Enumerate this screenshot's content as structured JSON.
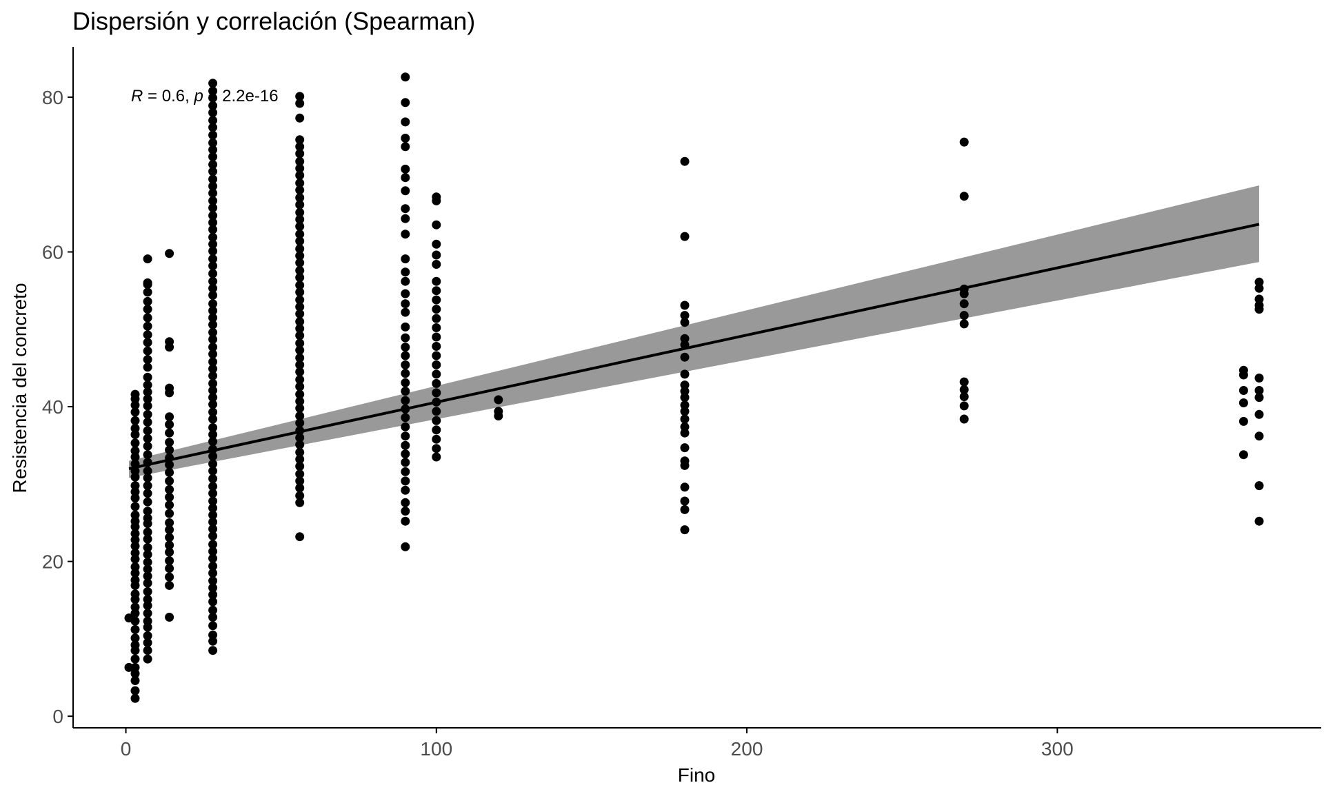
{
  "chart_data": {
    "type": "scatter",
    "title": "Dispersión y correlación (Spearman)",
    "xlabel": "Fino",
    "ylabel": "Resistencia del concreto",
    "xlim": [
      -17,
      385
    ],
    "ylim": [
      -1.5,
      86.5
    ],
    "xticks": [
      0,
      100,
      200,
      300
    ],
    "yticks": [
      0,
      20,
      40,
      60,
      80
    ],
    "grid": false,
    "legend": "none",
    "annotation": {
      "r_symbol": "R",
      "r_text": " = 0.6, ",
      "p_symbol": "p",
      "p_text": " < 2.2e-16",
      "x": 1,
      "y": 80
    },
    "regression": {
      "x_range": [
        1,
        365
      ],
      "intercept": 31.9,
      "slope": 0.0868,
      "ci_low_start": 30.8,
      "ci_low_end": 58.7,
      "ci_high_start": 33.0,
      "ci_high_end": 68.6
    },
    "points": [
      {
        "x": 1,
        "y": [
          6.3,
          12.7
        ]
      },
      {
        "x": 3,
        "y": [
          2.3,
          3.3,
          4.6,
          5.5,
          6.3,
          7.4,
          8.5,
          9.2,
          10.1,
          11.2,
          12.3,
          13.3,
          14.1,
          15.1,
          15.8,
          16.9,
          17.6,
          18.5,
          19.3,
          20.3,
          21.1,
          22.0,
          22.8,
          23.6,
          24.5,
          25.2,
          26.0,
          27.1,
          28.2,
          29.0,
          29.8,
          30.9,
          31.7,
          32.6,
          33.5,
          34.3,
          35.3,
          36.4,
          37.2,
          38.2,
          39.3,
          40.2,
          41.0,
          41.6
        ]
      },
      {
        "x": 7,
        "y": [
          7.4,
          8.5,
          9.5,
          10.4,
          11.5,
          12.3,
          13.3,
          14.3,
          15.1,
          16.1,
          17.2,
          18.1,
          19.0,
          19.9,
          20.9,
          21.8,
          22.9,
          23.8,
          24.9,
          25.6,
          26.5,
          27.7,
          28.8,
          29.8,
          30.8,
          31.7,
          32.8,
          33.8,
          34.9,
          35.9,
          36.9,
          38.0,
          39.0,
          40.1,
          41.0,
          41.9,
          42.8,
          43.8,
          45.1,
          46.1,
          47.2,
          48.3,
          49.3,
          50.4,
          51.5,
          52.6,
          53.6,
          54.8,
          55.8,
          56.0,
          59.1
        ]
      },
      {
        "x": 14,
        "y": [
          12.8,
          16.9,
          18.0,
          19.1,
          20.1,
          21.2,
          22.1,
          23.1,
          24.1,
          25.0,
          26.2,
          27.3,
          28.3,
          29.3,
          30.4,
          31.5,
          32.5,
          33.4,
          34.4,
          35.4,
          36.6,
          37.7,
          38.7,
          41.8,
          42.4,
          47.7,
          48.4,
          59.8
        ]
      },
      {
        "x": 28,
        "y": [
          8.5,
          9.7,
          10.5,
          11.7,
          12.8,
          13.7,
          14.8,
          15.7,
          16.6,
          17.5,
          18.5,
          19.4,
          20.4,
          21.3,
          22.2,
          23.3,
          24.2,
          25.1,
          26.0,
          26.9,
          27.8,
          28.8,
          29.7,
          30.7,
          31.7,
          32.6,
          33.6,
          34.5,
          35.5,
          36.4,
          37.3,
          38.4,
          39.3,
          40.3,
          41.2,
          42.1,
          43.0,
          44.0,
          44.9,
          45.8,
          46.8,
          47.7,
          48.7,
          49.6,
          50.6,
          51.5,
          52.4,
          53.3,
          54.4,
          55.3,
          56.2,
          57.2,
          58.2,
          59.1,
          60.1,
          61.0,
          61.9,
          62.9,
          63.8,
          64.7,
          65.7,
          66.6,
          67.6,
          68.5,
          69.4,
          70.4,
          71.3,
          72.3,
          73.2,
          74.1,
          75.1,
          76.1,
          77.0,
          78.0,
          78.9,
          79.9,
          80.8,
          81.8
        ]
      },
      {
        "x": 56,
        "y": [
          23.2,
          27.6,
          28.5,
          29.5,
          30.4,
          31.3,
          32.3,
          33.2,
          34.1,
          35.1,
          36.0,
          36.9,
          37.9,
          38.8,
          39.8,
          40.7,
          41.6,
          42.6,
          43.5,
          44.5,
          45.4,
          46.3,
          47.3,
          48.2,
          49.2,
          50.1,
          51.0,
          52.0,
          52.9,
          53.8,
          54.8,
          55.7,
          56.7,
          57.6,
          58.6,
          59.5,
          60.4,
          61.4,
          62.3,
          63.3,
          64.2,
          65.1,
          66.1,
          67.0,
          68.0,
          68.9,
          69.9,
          70.8,
          71.7,
          72.7,
          73.6,
          74.5,
          77.3,
          79.2,
          80.1
        ]
      },
      {
        "x": 90,
        "y": [
          21.9,
          25.2,
          26.5,
          27.6,
          29.2,
          30.4,
          31.6,
          32.8,
          33.9,
          35.0,
          36.2,
          37.4,
          38.6,
          39.7,
          40.8,
          42.0,
          43.1,
          44.3,
          45.4,
          46.6,
          47.7,
          48.9,
          50.3,
          52.2,
          53.3,
          54.6,
          56.2,
          57.4,
          59.1,
          62.3,
          64.3,
          65.6,
          67.9,
          69.6,
          70.7,
          73.6,
          74.7,
          76.8,
          79.3,
          82.6
        ]
      },
      {
        "x": 100,
        "y": [
          33.5,
          34.6,
          35.8,
          37.0,
          38.2,
          39.4,
          40.6,
          41.8,
          43.0,
          44.2,
          45.4,
          46.6,
          47.8,
          49.0,
          50.2,
          51.4,
          52.6,
          53.8,
          55.0,
          56.2,
          58.4,
          59.6,
          61.0,
          63.5,
          66.6,
          67.1
        ]
      },
      {
        "x": 120,
        "y": [
          38.8,
          39.4,
          40.9
        ]
      },
      {
        "x": 180,
        "y": [
          24.1,
          26.7,
          27.8,
          29.6,
          32.4,
          33.0,
          34.7,
          36.6,
          37.4,
          38.4,
          39.4,
          40.2,
          41.2,
          42.0,
          42.8,
          44.2,
          46.4,
          48.0,
          48.8,
          50.9,
          51.8,
          53.1,
          62.0,
          71.7
        ]
      },
      {
        "x": 270,
        "y": [
          38.4,
          40.1,
          41.3,
          42.2,
          43.2,
          50.7,
          51.8,
          53.3,
          54.6,
          55.2,
          67.2,
          74.2
        ]
      },
      {
        "x": 360,
        "y": [
          33.8,
          38.1,
          40.5,
          42.1,
          44.1,
          44.7
        ]
      },
      {
        "x": 365,
        "y": [
          25.2,
          29.8,
          36.2,
          39.0,
          41.2,
          42.1,
          43.7,
          52.6,
          53.1,
          53.9,
          55.3,
          56.1
        ]
      }
    ]
  }
}
